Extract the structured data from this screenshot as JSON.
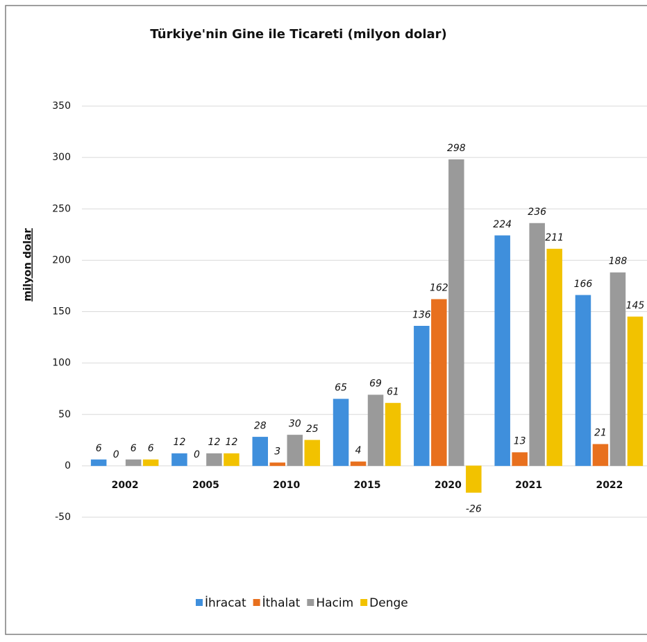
{
  "chart_data": {
    "type": "bar",
    "title": "Türkiye'nin Gine ile Ticareti (milyon dolar)",
    "y_label": "milyon dolar",
    "categories": [
      "2002",
      "2005",
      "2010",
      "2015",
      "2020",
      "2021",
      "2022"
    ],
    "series": [
      {
        "name": "İhracat",
        "color": "#3f8fdc",
        "values": [
          6,
          12,
          28,
          65,
          136,
          224,
          166
        ]
      },
      {
        "name": "İthalat",
        "color": "#e8701e",
        "values": [
          0,
          0,
          3,
          4,
          162,
          13,
          21
        ]
      },
      {
        "name": "Hacim",
        "color": "#9a9a9a",
        "values": [
          6,
          12,
          30,
          69,
          298,
          236,
          188
        ]
      },
      {
        "name": "Denge",
        "color": "#f2c200",
        "values": [
          6,
          12,
          25,
          61,
          -26,
          211,
          145
        ]
      }
    ],
    "ylim": [
      -50,
      350
    ],
    "yticks": [
      -50,
      0,
      50,
      100,
      150,
      200,
      250,
      300,
      350
    ],
    "grid": true,
    "legend": "bottom"
  }
}
